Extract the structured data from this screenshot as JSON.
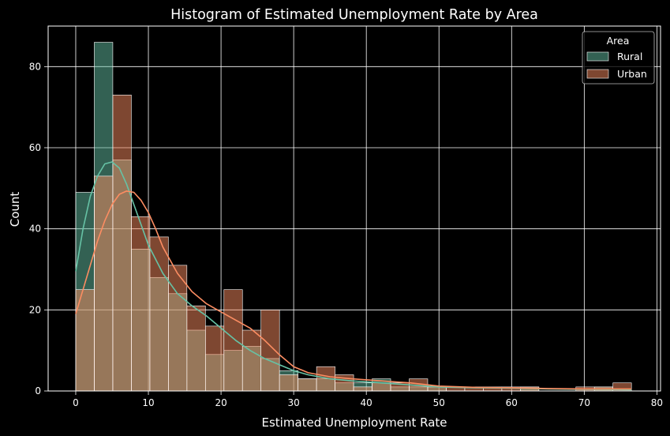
{
  "chart_data": {
    "type": "histogram",
    "title": "Histogram of Estimated Unemployment Rate by Area",
    "xlabel": "Estimated Unemployment Rate",
    "ylabel": "Count",
    "xlim": [
      -3.8,
      80.5
    ],
    "ylim": [
      0,
      90
    ],
    "x_ticks": [
      0,
      10,
      20,
      30,
      40,
      50,
      60,
      70,
      80
    ],
    "y_ticks": [
      0,
      20,
      40,
      60,
      80
    ],
    "grid": true,
    "legend": {
      "title": "Area",
      "placement": "top-right"
    },
    "bin_start": 0,
    "bin_width": 2.55,
    "series": [
      {
        "name": "Rural",
        "color": "#66c2a5",
        "counts": [
          49,
          86,
          57,
          35,
          28,
          24,
          15,
          9,
          10,
          11,
          8,
          5,
          3,
          3,
          2,
          2,
          3,
          1,
          1,
          1,
          0,
          0,
          0,
          0,
          1,
          0,
          0,
          0,
          1,
          0
        ],
        "kde": [
          [
            0,
            29.5
          ],
          [
            1,
            40
          ],
          [
            2,
            48
          ],
          [
            3,
            53
          ],
          [
            4,
            56
          ],
          [
            5,
            56.5
          ],
          [
            6,
            55
          ],
          [
            7,
            51
          ],
          [
            8,
            46
          ],
          [
            9,
            41
          ],
          [
            10,
            36
          ],
          [
            12,
            29
          ],
          [
            14,
            24
          ],
          [
            16,
            21
          ],
          [
            18,
            18.5
          ],
          [
            20,
            15.5
          ],
          [
            22,
            12.5
          ],
          [
            24,
            10
          ],
          [
            26,
            8
          ],
          [
            28,
            6.5
          ],
          [
            30,
            5
          ],
          [
            32,
            4
          ],
          [
            35,
            3
          ],
          [
            38,
            2.5
          ],
          [
            42,
            2
          ],
          [
            46,
            1.5
          ],
          [
            50,
            1
          ],
          [
            55,
            0.8
          ],
          [
            60,
            0.7
          ],
          [
            65,
            0.5
          ],
          [
            70,
            0.4
          ],
          [
            76.5,
            0.3
          ]
        ]
      },
      {
        "name": "Urban",
        "color": "#fc8d62",
        "counts": [
          25,
          53,
          73,
          43,
          38,
          31,
          21,
          16,
          25,
          15,
          20,
          4,
          3,
          6,
          4,
          1,
          2,
          2,
          3,
          1,
          1,
          1,
          1,
          1,
          1,
          0,
          0,
          1,
          1,
          2
        ],
        "kde": [
          [
            0,
            19
          ],
          [
            1,
            25
          ],
          [
            2,
            31
          ],
          [
            3,
            37
          ],
          [
            4,
            42
          ],
          [
            5,
            46
          ],
          [
            6,
            48.5
          ],
          [
            7,
            49.3
          ],
          [
            8,
            49
          ],
          [
            9,
            47
          ],
          [
            10,
            44
          ],
          [
            11,
            40
          ],
          [
            12,
            35.5
          ],
          [
            14,
            29
          ],
          [
            16,
            24.5
          ],
          [
            18,
            21.5
          ],
          [
            20,
            19.5
          ],
          [
            22,
            17.5
          ],
          [
            24,
            15.5
          ],
          [
            26,
            12.5
          ],
          [
            28,
            9
          ],
          [
            30,
            6
          ],
          [
            32,
            4.5
          ],
          [
            35,
            3.5
          ],
          [
            38,
            3
          ],
          [
            42,
            2.5
          ],
          [
            46,
            2
          ],
          [
            50,
            1.2
          ],
          [
            55,
            0.9
          ],
          [
            60,
            0.8
          ],
          [
            65,
            0.6
          ],
          [
            70,
            0.5
          ],
          [
            76.5,
            0.5
          ]
        ]
      }
    ]
  }
}
